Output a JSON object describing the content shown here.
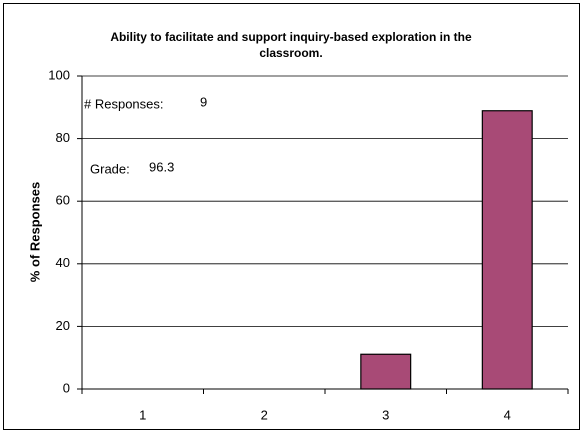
{
  "chart_data": {
    "type": "bar",
    "title": "Ability to facilitate and support inquiry-based exploration in the classroom.",
    "y_label": "% of Responses",
    "categories": [
      "1",
      "2",
      "3",
      "4"
    ],
    "values": [
      0,
      0,
      11.1,
      88.9
    ],
    "color": "#a84a76",
    "ylim": [
      0,
      100
    ],
    "yticks": [
      0,
      20,
      40,
      60,
      80,
      100
    ],
    "grid": true,
    "annotations": [
      {
        "label": "# Responses:",
        "value": 9
      },
      {
        "label": "Grade:",
        "value": 96.3
      }
    ]
  }
}
